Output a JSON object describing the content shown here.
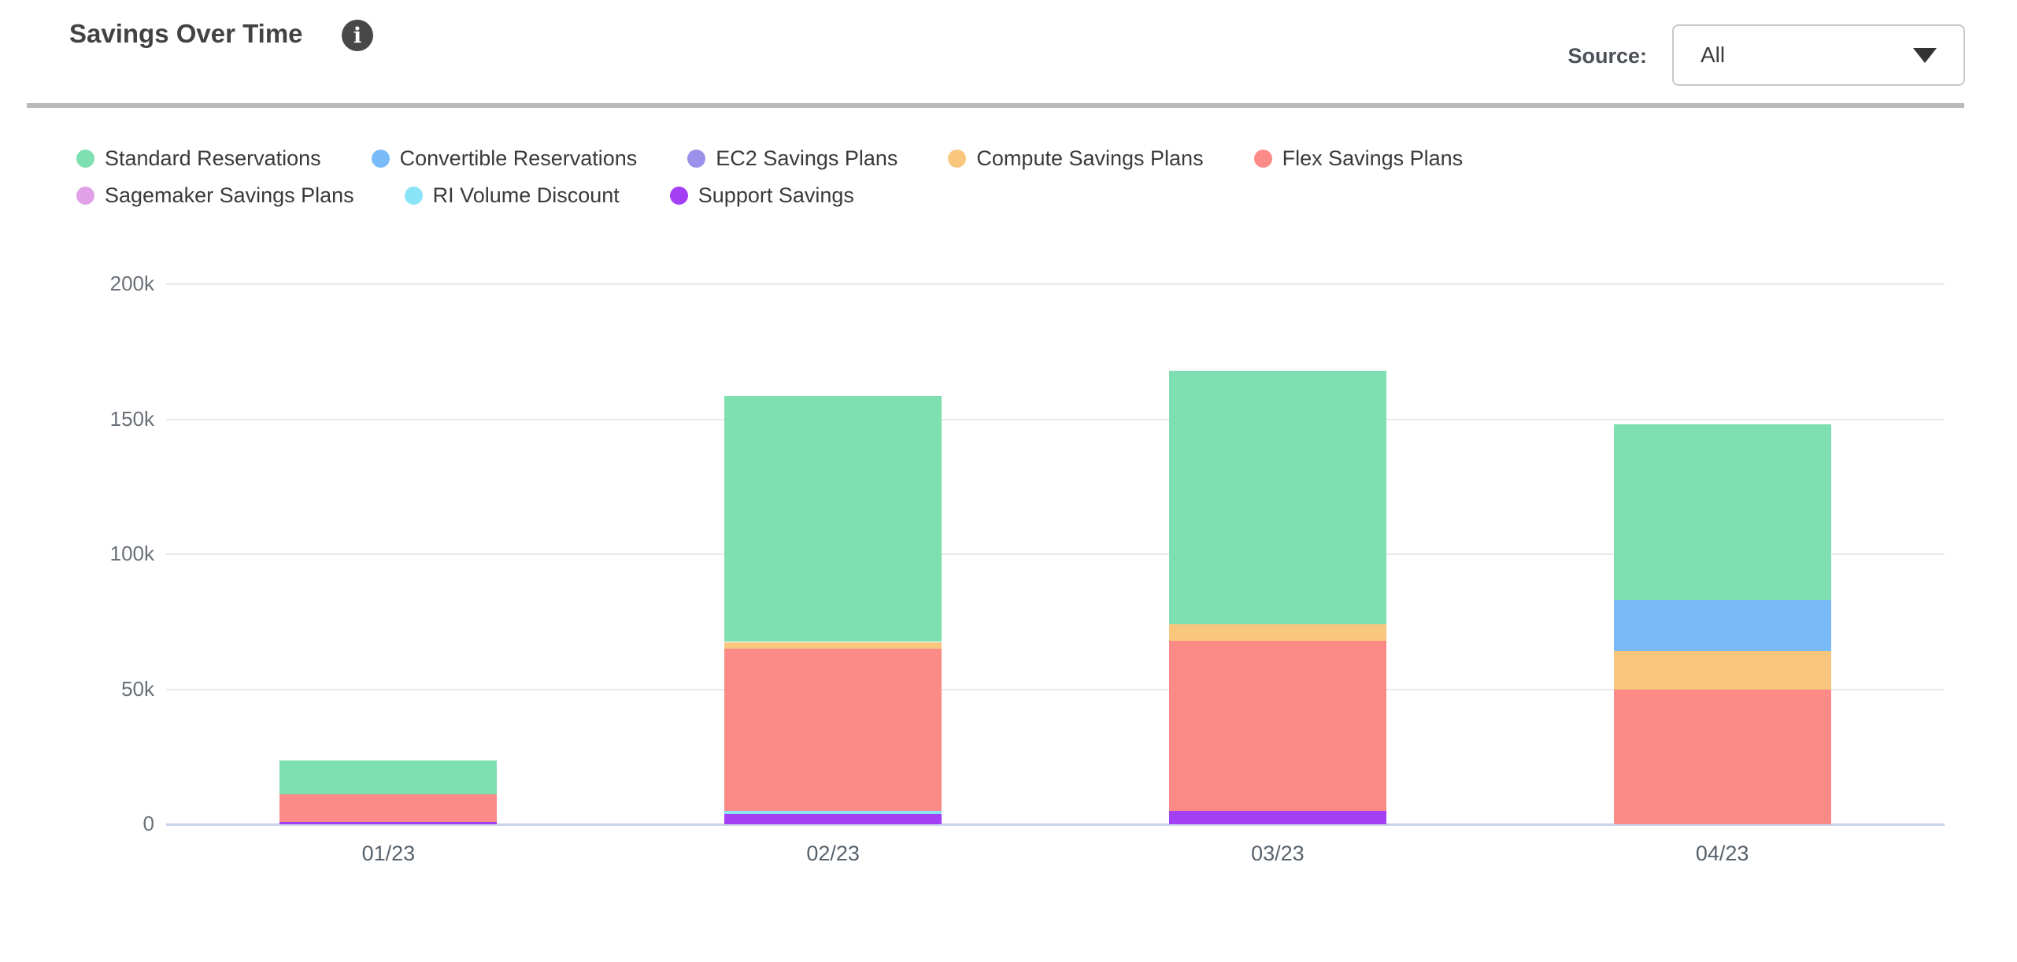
{
  "header": {
    "title": "Savings Over Time",
    "info_icon": "info-icon",
    "source_label": "Source:",
    "source_value": "All"
  },
  "chart_data": {
    "type": "bar",
    "stacked": true,
    "title": "Savings Over Time",
    "value_unit": "thousands",
    "categories": [
      "01/23",
      "02/23",
      "03/23",
      "04/23"
    ],
    "series": [
      {
        "name": "Standard Reservations",
        "color": "#7EDFB1",
        "values": [
          12.6,
          91,
          94,
          65
        ]
      },
      {
        "name": "Convertible Reservations",
        "color": "#79BAF8",
        "values": [
          0,
          0,
          0,
          19
        ]
      },
      {
        "name": "EC2 Savings Plans",
        "color": "#9B90EA",
        "values": [
          0,
          0,
          0,
          0
        ]
      },
      {
        "name": "Compute Savings Plans",
        "color": "#F8C67D",
        "values": [
          0,
          2.5,
          6,
          14
        ]
      },
      {
        "name": "Flex Savings Plans",
        "color": "#FC8B88",
        "values": [
          10,
          60,
          63,
          50
        ]
      },
      {
        "name": "Sagemaker Savings Plans",
        "color": "#E0A1E8",
        "values": [
          0,
          0,
          0,
          0
        ]
      },
      {
        "name": "RI Volume Discount",
        "color": "#8AE4F8",
        "values": [
          0,
          1.2,
          0,
          0
        ]
      },
      {
        "name": "Support Savings",
        "color": "#A33FF5",
        "values": [
          1,
          3.8,
          5,
          0
        ]
      }
    ],
    "stack_order_bottom_to_top": [
      "Support Savings",
      "RI Volume Discount",
      "Sagemaker Savings Plans",
      "Flex Savings Plans",
      "Compute Savings Plans",
      "EC2 Savings Plans",
      "Convertible Reservations",
      "Standard Reservations"
    ],
    "totals": [
      23.6,
      158.5,
      168,
      148
    ],
    "y_axis": {
      "ticks": [
        {
          "value": 0,
          "label": "0"
        },
        {
          "value": 50,
          "label": "50k"
        },
        {
          "value": 100,
          "label": "100k"
        },
        {
          "value": 150,
          "label": "150k"
        },
        {
          "value": 200,
          "label": "200k"
        }
      ],
      "ylim": [
        0,
        200
      ]
    },
    "xlabel": "",
    "ylabel": "",
    "legend_position": "top",
    "grid": true
  }
}
